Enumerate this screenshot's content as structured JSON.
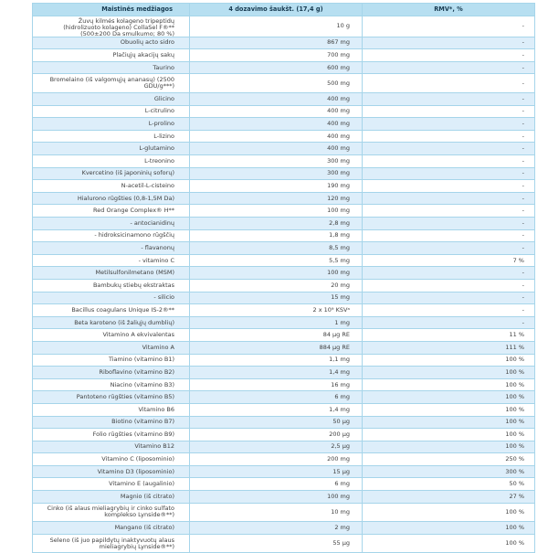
{
  "table": {
    "headers": {
      "nutrient": "Maistinės medžiagos",
      "dose": "4 dozavimo šaukšt. (17,4 g)",
      "rmv": "RMV*, %"
    },
    "rows": [
      {
        "name": "Žuvų kilmės kolageno tripeptidų (hidrolizuoto kolageno) CollaSel F®** (500±200 Da smulkumo; 80 %)",
        "amount": "10 g",
        "rmv": "-",
        "clipped": true
      },
      {
        "name": "Obuolių acto sidro",
        "amount": "867 mg",
        "rmv": "-"
      },
      {
        "name": "Plačiųjų akacijų sakų",
        "amount": "700 mg",
        "rmv": "-"
      },
      {
        "name": "Taurino",
        "amount": "600 mg",
        "rmv": "-"
      },
      {
        "name": "Bromelaino (iš valgomųjų ananasų) (2500 GDU/g***)",
        "amount": "500 mg",
        "rmv": "-"
      },
      {
        "name": "Glicino",
        "amount": "400 mg",
        "rmv": "-"
      },
      {
        "name": "L-citrulino",
        "amount": "400 mg",
        "rmv": "-"
      },
      {
        "name": "L-prolino",
        "amount": "400 mg",
        "rmv": "-"
      },
      {
        "name": "L-lizino",
        "amount": "400 mg",
        "rmv": "-"
      },
      {
        "name": "L-glutamino",
        "amount": "400 mg",
        "rmv": "-"
      },
      {
        "name": "L-treonino",
        "amount": "300 mg",
        "rmv": "-"
      },
      {
        "name": "Kvercetino (iš japoninių soforų)",
        "amount": "300 mg",
        "rmv": "-"
      },
      {
        "name": "N-acetil-L-cisteino",
        "amount": "190 mg",
        "rmv": "-"
      },
      {
        "name": "Hialurono rūgšties (0,8-1,5M Da)",
        "amount": "120 mg",
        "rmv": "-"
      },
      {
        "name": "Red Orange Complex® H**",
        "amount": "100 mg",
        "rmv": "-"
      },
      {
        "name": "- antocianidinų",
        "amount": "2,8 mg",
        "rmv": "-"
      },
      {
        "name": "- hidroksicinamono rūgščių",
        "amount": "1,8 mg",
        "rmv": "-"
      },
      {
        "name": "- flavanonų",
        "amount": "8,5 mg",
        "rmv": "-"
      },
      {
        "name": "- vitamino C",
        "amount": "5,5 mg",
        "rmv": "7 %"
      },
      {
        "name": "Metilsulfonilmetano (MSM)",
        "amount": "100 mg",
        "rmv": "-"
      },
      {
        "name": "Bambukų stiebų ekstraktas",
        "amount": "20 mg",
        "rmv": "-"
      },
      {
        "name": "- silicio",
        "amount": "15 mg",
        "rmv": "-"
      },
      {
        "name": "Bacillus coagulans Unique IS-2®**",
        "amount": "2 x 10⁹ KSVᵃ",
        "rmv": "-"
      },
      {
        "name": "Beta karoteno (iš žaliųjų dumblių)",
        "amount": "1 mg",
        "rmv": "-"
      },
      {
        "name": "Vitamino A ekvivalentas",
        "amount": "84 µg RE",
        "rmv": "11 %"
      },
      {
        "name": "Vitamino A",
        "amount": "884 µg RE",
        "rmv": "111 %"
      },
      {
        "name": "Tiamino (vitamino B1)",
        "amount": "1,1 mg",
        "rmv": "100 %"
      },
      {
        "name": "Riboflavino (vitamino B2)",
        "amount": "1,4 mg",
        "rmv": "100 %"
      },
      {
        "name": "Niacino (vitamino B3)",
        "amount": "16 mg",
        "rmv": "100 %"
      },
      {
        "name": "Pantoteno rūgšties (vitamino B5)",
        "amount": "6 mg",
        "rmv": "100 %"
      },
      {
        "name": "Vitamino B6",
        "amount": "1,4 mg",
        "rmv": "100 %"
      },
      {
        "name": "Biotino (vitamino B7)",
        "amount": "50 µg",
        "rmv": "100 %"
      },
      {
        "name": "Folio rūgšties (vitamino B9)",
        "amount": "200 µg",
        "rmv": "100 %"
      },
      {
        "name": "Vitamino B12",
        "amount": "2,5 µg",
        "rmv": "100 %"
      },
      {
        "name": "Vitamino C (liposominio)",
        "amount": "200 mg",
        "rmv": "250 %"
      },
      {
        "name": "Vitamino D3 (liposominio)",
        "amount": "15 µg",
        "rmv": "300 %"
      },
      {
        "name": "Vitamino E (augalinio)",
        "amount": "6 mg",
        "rmv": "50 %"
      },
      {
        "name": "Magnio (iš citrato)",
        "amount": "100 mg",
        "rmv": "27 %"
      },
      {
        "name": "Cinko (iš alaus mieliagrybių ir cinko sulfato komplekso Lynside®**)",
        "amount": "10 mg",
        "rmv": "100 %"
      },
      {
        "name": "Mangano (iš citrato)",
        "amount": "2 mg",
        "rmv": "100 %"
      },
      {
        "name": "Seleno (iš juo papildytų inaktyvuotų alaus mieliagrybių Lynside®**)",
        "amount": "55 µg",
        "rmv": "100 %"
      }
    ]
  },
  "colors": {
    "header_bg": "#b7dff1",
    "stripe_bg": "#ddeefa",
    "border": "#a6d5ea",
    "text": "#404040",
    "header_text": "#173a50"
  }
}
